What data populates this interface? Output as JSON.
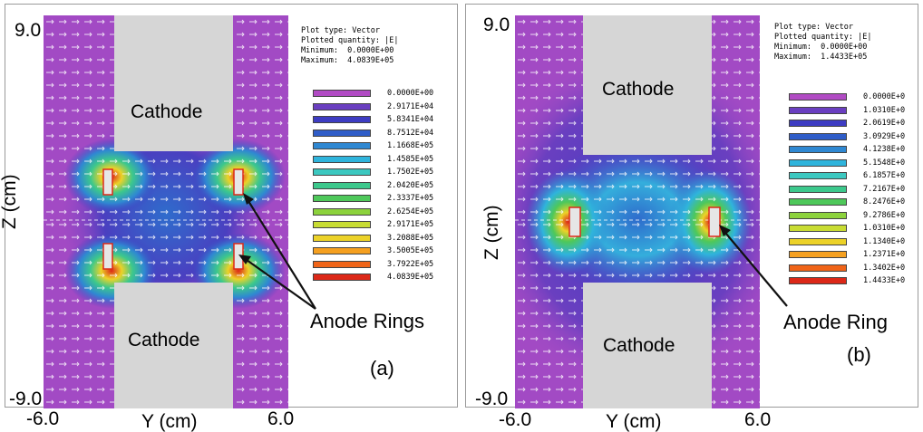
{
  "panels": [
    {
      "id": "a",
      "plot_type": "Plot type: Vector",
      "plotted_quantity": "Plotted quantity: |E|",
      "minimum": "Minimum:  0.0000E+00",
      "maximum": "Maximum:  4.0839E+05",
      "z_max": "9.0",
      "z_min": "-9.0",
      "y_min": "-6.0",
      "y_max": "6.0",
      "y_label": "Y (cm)",
      "z_label": "Z (cm)",
      "cathode_top": "Cathode",
      "cathode_bottom": "Cathode",
      "anode_label": "Anode Rings",
      "panel_label": "(a)",
      "legend": [
        {
          "color": "#b14bc4",
          "label": "0.0000E+00"
        },
        {
          "color": "#6a3fc0",
          "label": "2.9171E+04"
        },
        {
          "color": "#3d3cc2",
          "label": "5.8341E+04"
        },
        {
          "color": "#2f5dc8",
          "label": "8.7512E+04"
        },
        {
          "color": "#2f88d2",
          "label": "1.1668E+05"
        },
        {
          "color": "#2fb4dc",
          "label": "1.4585E+05"
        },
        {
          "color": "#3cc8c0",
          "label": "1.7502E+05"
        },
        {
          "color": "#3cc88c",
          "label": "2.0420E+05"
        },
        {
          "color": "#4ec85a",
          "label": "2.3337E+05"
        },
        {
          "color": "#8cd23c",
          "label": "2.6254E+05"
        },
        {
          "color": "#c8dc32",
          "label": "2.9171E+05"
        },
        {
          "color": "#ecd228",
          "label": "3.2088E+05"
        },
        {
          "color": "#f5a020",
          "label": "3.5005E+05"
        },
        {
          "color": "#f06418",
          "label": "3.7922E+05"
        },
        {
          "color": "#dc2818",
          "label": "4.0839E+05"
        }
      ]
    },
    {
      "id": "b",
      "plot_type": "Plot type: Vector",
      "plotted_quantity": "Plotted quantity: |E|",
      "minimum": "Minimum:  0.0000E+00",
      "maximum": "Maximum:  1.4433E+05",
      "z_max": "9.0",
      "z_min": "-9.0",
      "y_min": "-6.0",
      "y_max": "6.0",
      "y_label": "Y (cm)",
      "z_label": "Z (cm)",
      "cathode_top": "Cathode",
      "cathode_bottom": "Cathode",
      "anode_label": "Anode Ring",
      "panel_label": "(b)",
      "legend": [
        {
          "color": "#b14bc4",
          "label": "0.0000E+0"
        },
        {
          "color": "#6a3fc0",
          "label": "1.0310E+0"
        },
        {
          "color": "#3d3cc2",
          "label": "2.0619E+0"
        },
        {
          "color": "#2f5dc8",
          "label": "3.0929E+0"
        },
        {
          "color": "#2f88d2",
          "label": "4.1238E+0"
        },
        {
          "color": "#2fb4dc",
          "label": "5.1548E+0"
        },
        {
          "color": "#3cc8c0",
          "label": "6.1857E+0"
        },
        {
          "color": "#3cc88c",
          "label": "7.2167E+0"
        },
        {
          "color": "#4ec85a",
          "label": "8.2476E+0"
        },
        {
          "color": "#8cd23c",
          "label": "9.2786E+0"
        },
        {
          "color": "#c8dc32",
          "label": "1.0310E+0"
        },
        {
          "color": "#ecd228",
          "label": "1.1340E+0"
        },
        {
          "color": "#f5a020",
          "label": "1.2371E+0"
        },
        {
          "color": "#f06418",
          "label": "1.3402E+0"
        },
        {
          "color": "#dc2818",
          "label": "1.4433E+0"
        }
      ]
    }
  ]
}
